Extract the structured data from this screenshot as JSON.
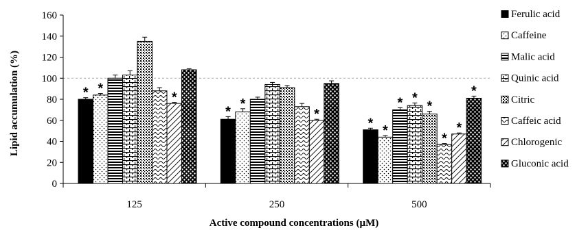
{
  "chart_data": {
    "type": "bar",
    "xlabel": "Active compound concentrations (µM)",
    "ylabel": "Lipid accumulation (%)",
    "ylim": [
      0,
      160
    ],
    "yticks": [
      0,
      20,
      40,
      60,
      80,
      100,
      120,
      140,
      160
    ],
    "reference_line": 100,
    "categories": [
      "125",
      "250",
      "500"
    ],
    "series": [
      {
        "name": "Ferulic acid",
        "pattern": "solid",
        "values": [
          80,
          61,
          51
        ],
        "errors": [
          1.5,
          2.5,
          1.5
        ],
        "significant": [
          true,
          true,
          true
        ]
      },
      {
        "name": "Caffeine",
        "pattern": "dots",
        "values": [
          84,
          68,
          44
        ],
        "errors": [
          1.5,
          3,
          1.5
        ],
        "significant": [
          true,
          true,
          true
        ]
      },
      {
        "name": "Malic acid",
        "pattern": "hlines",
        "values": [
          100,
          80,
          70
        ],
        "errors": [
          3,
          2,
          2
        ],
        "significant": [
          false,
          false,
          true
        ]
      },
      {
        "name": "Quinic acid",
        "pattern": "grid",
        "values": [
          103,
          94,
          74
        ],
        "errors": [
          4,
          2,
          2.5
        ],
        "significant": [
          false,
          false,
          true
        ]
      },
      {
        "name": "Citric",
        "pattern": "dense-dots",
        "values": [
          135,
          91,
          66
        ],
        "errors": [
          4,
          2,
          2.5
        ],
        "significant": [
          false,
          false,
          true
        ]
      },
      {
        "name": "Caffeic acid",
        "pattern": "wave",
        "values": [
          88,
          73,
          37
        ],
        "errors": [
          3,
          3,
          1
        ],
        "significant": [
          false,
          false,
          true
        ]
      },
      {
        "name": "Chlorogenic",
        "pattern": "diagonal",
        "values": [
          76,
          60,
          47
        ],
        "errors": [
          1,
          1,
          1
        ],
        "significant": [
          true,
          true,
          true
        ]
      },
      {
        "name": "Gluconic acid",
        "pattern": "checker",
        "values": [
          108,
          95,
          81
        ],
        "errors": [
          1,
          2.5,
          2
        ],
        "significant": [
          false,
          false,
          true
        ]
      }
    ],
    "legend": "right",
    "significance_marker": "*"
  }
}
